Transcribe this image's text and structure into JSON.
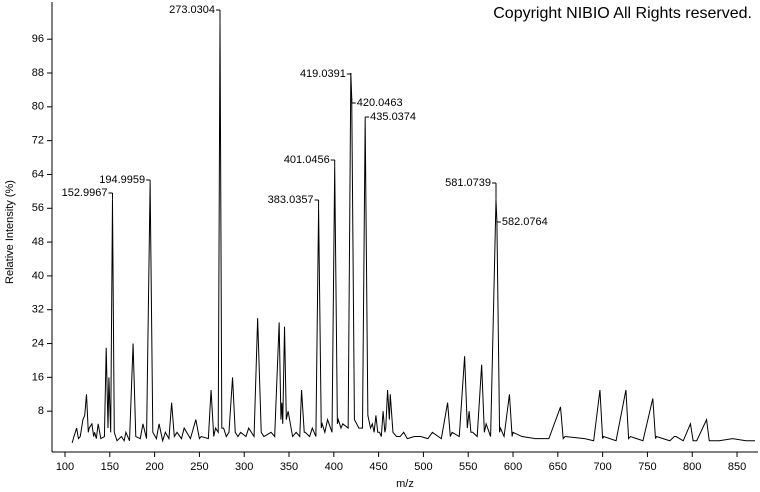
{
  "chart_data": {
    "type": "line",
    "copyright": "Copyright NIBIO All Rights reserved.",
    "xlabel": "m/z",
    "ylabel": "Relative Intensity (%)",
    "color": "#000000",
    "xlim": [
      85.5,
      873.4
    ],
    "ylim": [
      -1.66,
      104.8
    ],
    "xticks": [
      100,
      150,
      200,
      250,
      300,
      350,
      400,
      450,
      500,
      550,
      600,
      650,
      700,
      750,
      800,
      850
    ],
    "yticks": [
      8,
      16,
      24,
      32,
      40,
      48,
      56,
      64,
      72,
      80,
      88,
      96
    ],
    "x": [
      108,
      110,
      113,
      115,
      117,
      120,
      122,
      124,
      126,
      127,
      130,
      132,
      133,
      135,
      137,
      140,
      144,
      146,
      148,
      149,
      151,
      153,
      155,
      158,
      163,
      166,
      168,
      172,
      176,
      179,
      184,
      187,
      191,
      195,
      198,
      202,
      205,
      209,
      212,
      216,
      219,
      222,
      225,
      230,
      233,
      240,
      246,
      250,
      252,
      260,
      263,
      266,
      268,
      271,
      273,
      275,
      277,
      280,
      283,
      287,
      290,
      293,
      296,
      302,
      305,
      311,
      315,
      319,
      322,
      330,
      334,
      339,
      341,
      342,
      343,
      345,
      347,
      349,
      354,
      358,
      362,
      364,
      367,
      368,
      373,
      376,
      380,
      383,
      386,
      387,
      390,
      393,
      398,
      401,
      404,
      405,
      408,
      410,
      416,
      419,
      420,
      423,
      428,
      432,
      435,
      438,
      441,
      443,
      445,
      447,
      449,
      451,
      453,
      455,
      457,
      458,
      460,
      462,
      463,
      466,
      470,
      474,
      478,
      482,
      490,
      497,
      505,
      510,
      520,
      527,
      530,
      532,
      540,
      546,
      549,
      551,
      553,
      555,
      560,
      565,
      568,
      570,
      575,
      581,
      582,
      585,
      586,
      590,
      596,
      599,
      600,
      610,
      625,
      640,
      653,
      656,
      658,
      680,
      690,
      697,
      700,
      701,
      715,
      726,
      729,
      731,
      745,
      756,
      759,
      760,
      775,
      780,
      782,
      790,
      798,
      801,
      805,
      816,
      819,
      830,
      845,
      860,
      870
    ],
    "values": [
      0.5,
      2,
      4,
      1.5,
      2,
      6,
      7,
      12,
      3,
      4,
      5,
      2,
      3,
      1.5,
      5,
      1.5,
      2,
      23,
      4,
      16,
      3,
      58,
      3,
      1,
      2,
      1,
      3,
      1,
      24,
      2,
      1.5,
      5,
      1.5,
      62,
      3,
      1.5,
      5,
      1,
      3,
      1.5,
      10,
      2,
      3,
      1.5,
      4,
      1.5,
      6,
      1.5,
      2,
      1.5,
      13,
      2,
      4,
      3,
      100,
      4,
      4,
      2,
      3,
      16,
      3,
      2,
      3,
      2,
      4,
      2,
      30,
      3,
      2,
      3,
      2,
      29,
      6,
      10,
      5,
      28,
      6,
      8,
      2,
      3,
      2,
      13,
      3,
      3,
      2,
      4,
      2,
      56,
      4,
      5,
      3,
      6,
      3,
      66,
      5,
      6,
      4,
      5,
      4,
      88,
      82,
      6,
      4,
      4,
      77,
      7,
      4,
      5,
      3,
      7,
      3,
      3,
      2,
      8,
      3,
      4,
      13,
      6,
      12,
      3,
      2,
      2,
      3,
      1.5,
      2,
      2,
      1.5,
      3,
      1.5,
      10,
      2,
      3,
      2,
      21,
      4,
      8,
      3,
      3,
      2,
      19,
      3,
      5,
      2,
      58,
      53,
      3,
      4,
      2,
      12,
      2,
      3,
      2,
      1.5,
      1.5,
      9,
      1.5,
      2,
      1.5,
      1,
      13,
      1.5,
      2,
      1,
      13,
      1.5,
      2,
      1,
      11,
      1.5,
      2,
      1,
      2,
      2,
      1,
      5,
      1,
      1,
      6,
      1,
      1,
      1.5,
      1,
      1
    ],
    "annotations": [
      "152.9967",
      "194.9959",
      "273.0304",
      "383.0357",
      "401.0456",
      "419.0391",
      "420.0463",
      "435.0374",
      "581.0739",
      "582.0764"
    ]
  }
}
